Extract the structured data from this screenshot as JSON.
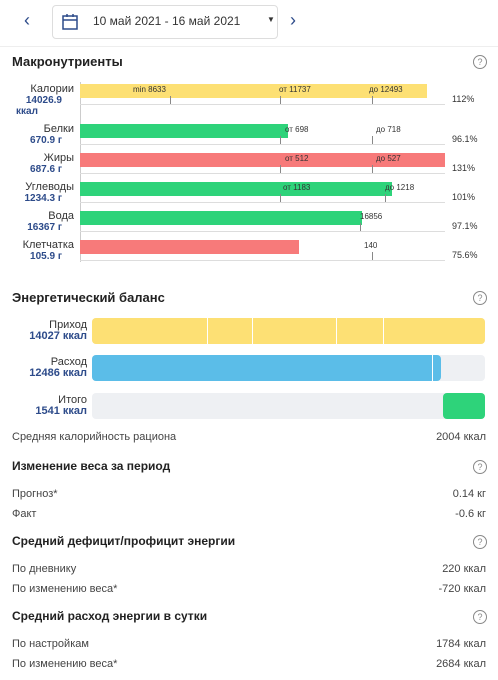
{
  "header": {
    "date_range": "10 май 2021 - 16 май 2021"
  },
  "macros": {
    "title": "Макронутриенты",
    "rows": [
      {
        "name": "Калории",
        "amount": "14026.9",
        "unit": "ккал",
        "markers": [
          "min 8633",
          "от 11737",
          "до 12493"
        ],
        "percent": "112%"
      },
      {
        "name": "Белки",
        "amount": "670.9 г",
        "markers": [
          "от 698",
          "до 718"
        ],
        "percent": "96.1%"
      },
      {
        "name": "Жиры",
        "amount": "687.6 г",
        "markers": [
          "от 512",
          "до 527"
        ],
        "percent": "131%"
      },
      {
        "name": "Углеводы",
        "amount": "1234.3 г",
        "markers": [
          "от 1183",
          "до 1218"
        ],
        "percent": "101%"
      },
      {
        "name": "Вода",
        "amount": "16367 г",
        "markers": [
          "16856"
        ],
        "percent": "97.1%"
      },
      {
        "name": "Клетчатка",
        "amount": "105.9 г",
        "markers": [
          "140"
        ],
        "percent": "75.6%"
      }
    ]
  },
  "energy": {
    "title": "Энергетический баланс",
    "rows": [
      {
        "name": "Приход",
        "amount": "14027 ккал"
      },
      {
        "name": "Расход",
        "amount": "12486 ккал"
      },
      {
        "name": "Итого",
        "amount": "1541 ккал"
      }
    ],
    "average": {
      "label": "Средняя калорийность рациона",
      "value": "2004 ккал"
    }
  },
  "sections": [
    {
      "title": "Изменение веса за период",
      "rows": [
        {
          "label": "Прогноз*",
          "value": "0.14 кг"
        },
        {
          "label": "Факт",
          "value": "-0.6 кг"
        }
      ]
    },
    {
      "title": "Средний дефицит/профицит энергии",
      "rows": [
        {
          "label": "По дневнику",
          "value": "220 ккал"
        },
        {
          "label": "По изменению веса*",
          "value": "-720 ккал"
        }
      ]
    },
    {
      "title": "Средний расход энергии в сутки",
      "rows": [
        {
          "label": "По настройкам",
          "value": "1784 ккал"
        },
        {
          "label": "По изменению веса*",
          "value": "2684 ккал"
        }
      ]
    }
  ]
}
